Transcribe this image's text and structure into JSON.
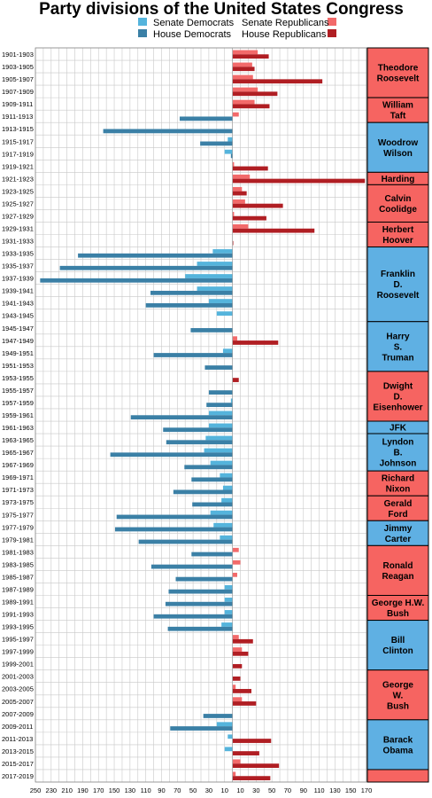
{
  "chart_data": {
    "type": "bar",
    "title": "Party divisions of the United States Congress",
    "legend": [
      {
        "label": "Senate  Democrats",
        "color": "#55b4dc"
      },
      {
        "label": "House Democrats",
        "color": "#3b80a6"
      },
      {
        "label": "Senate Republicans",
        "color": "#f26a6a"
      },
      {
        "label": "House  Republicans",
        "color": "#b01e23"
      }
    ],
    "colors": {
      "senate_dem": "#55b4dc",
      "house_dem": "#3b80a6",
      "senate_rep": "#f26a6a",
      "house_rep": "#b01e23",
      "dem_president": "#5fb0e3",
      "rep_president": "#f66461"
    },
    "x_ticks": [
      "250",
      "230",
      "210",
      "190",
      "170",
      "150",
      "130",
      "110",
      "90",
      "70",
      "50",
      "30",
      "10",
      "10",
      "30",
      "50",
      "70",
      "90",
      "110",
      "130",
      "150",
      "170"
    ],
    "xlim": [
      -250,
      170
    ],
    "grid": true,
    "categories": [
      "1901-1903",
      "1903-1905",
      "1905-1907",
      "1907-1909",
      "1909-1911",
      "1911-1913",
      "1913-1915",
      "1915-1917",
      "1917-1919",
      "1919-1921",
      "1921-1923",
      "1923-1925",
      "1925-1927",
      "1927-1929",
      "1929-1931",
      "1931-1933",
      "1933-1935",
      "1935-1937",
      "1937-1939",
      "1939-1941",
      "1941-1943",
      "1943-1945",
      "1945-1947",
      "1947-1949",
      "1949-1951",
      "1951-1953",
      "1953-1955",
      "1955-1957",
      "1957-1959",
      "1959-1961",
      "1961-1963",
      "1963-1965",
      "1965-1967",
      "1967-1969",
      "1969-1971",
      "1971-1973",
      "1973-1975",
      "1975-1977",
      "1977-1979",
      "1979-1981",
      "1981-1983",
      "1983-1985",
      "1985-1987",
      "1987-1989",
      "1989-1991",
      "1991-1993",
      "1993-1995",
      "1995-1997",
      "1997-1999",
      "1999-2001",
      "2001-2003",
      "2003-2005",
      "2005-2007",
      "2007-2009",
      "2009-2011",
      "2011-2013",
      "2013-2015",
      "2015-2017",
      "2017-2019"
    ],
    "series": [
      {
        "name": "Senate  Democrats",
        "values": [
          0,
          0,
          0,
          0,
          0,
          0,
          0,
          -6,
          -10,
          0,
          0,
          0,
          0,
          0,
          0,
          0,
          -25,
          -45,
          -60,
          -45,
          -30,
          -20,
          0,
          0,
          -12,
          0,
          0,
          0,
          -2,
          -30,
          -30,
          -34,
          -36,
          -28,
          -16,
          -12,
          -14,
          -28,
          -24,
          -16,
          0,
          0,
          0,
          -10,
          -10,
          -10,
          -14,
          0,
          0,
          0,
          0,
          0,
          0,
          0,
          -20,
          -6,
          -10,
          0,
          0
        ]
      },
      {
        "name": "House Democrats",
        "values": [
          0,
          0,
          0,
          0,
          0,
          -67,
          -164,
          -41,
          -2,
          0,
          0,
          0,
          0,
          0,
          0,
          0,
          -196,
          -219,
          -244,
          -104,
          -110,
          0,
          -53,
          0,
          -100,
          -35,
          0,
          -30,
          -33,
          -129,
          -88,
          -84,
          -155,
          -61,
          -52,
          -75,
          -51,
          -147,
          -149,
          -119,
          -52,
          -103,
          -72,
          -81,
          -85,
          -100,
          -82,
          0,
          0,
          0,
          0,
          0,
          0,
          -37,
          -79,
          0,
          0,
          0,
          0
        ]
      },
      {
        "name": "Senate Republicans",
        "values": [
          32,
          25,
          26,
          32,
          28,
          8,
          0,
          0,
          0,
          2,
          22,
          12,
          16,
          2,
          20,
          0,
          0,
          0,
          0,
          0,
          0,
          0,
          0,
          6,
          0,
          0,
          0,
          0,
          0,
          0,
          0,
          0,
          0,
          0,
          0,
          0,
          0,
          0,
          0,
          0,
          8,
          10,
          6,
          0,
          0,
          0,
          0,
          8,
          12,
          0,
          0,
          4,
          12,
          0,
          0,
          0,
          0,
          10,
          4
        ]
      },
      {
        "name": "House  Republicans",
        "values": [
          46,
          28,
          114,
          57,
          47,
          0,
          0,
          0,
          0,
          45,
          168,
          18,
          64,
          43,
          104,
          1,
          0,
          0,
          0,
          0,
          0,
          0,
          0,
          58,
          0,
          0,
          8,
          0,
          0,
          0,
          0,
          0,
          0,
          0,
          0,
          0,
          0,
          0,
          0,
          0,
          0,
          0,
          0,
          0,
          0,
          0,
          0,
          26,
          20,
          12,
          10,
          24,
          30,
          0,
          0,
          49,
          34,
          59,
          48
        ]
      }
    ],
    "presidents": [
      {
        "name": [
          "Theodore",
          "Roosevelt"
        ],
        "party": "R",
        "start": 0,
        "end": 4
      },
      {
        "name": [
          "William",
          "Taft"
        ],
        "party": "R",
        "start": 4,
        "end": 6
      },
      {
        "name": [
          "Woodrow",
          "Wilson"
        ],
        "party": "D",
        "start": 6,
        "end": 10
      },
      {
        "name": [
          "Harding"
        ],
        "party": "R",
        "start": 10,
        "end": 11
      },
      {
        "name": [
          "Calvin",
          "Coolidge"
        ],
        "party": "R",
        "start": 11,
        "end": 14
      },
      {
        "name": [
          "Herbert",
          "Hoover"
        ],
        "party": "R",
        "start": 14,
        "end": 16
      },
      {
        "name": [
          "Franklin",
          "D.",
          "Roosevelt"
        ],
        "party": "D",
        "start": 16,
        "end": 22
      },
      {
        "name": [
          "Harry",
          "S.",
          "Truman"
        ],
        "party": "D",
        "start": 22,
        "end": 26
      },
      {
        "name": [
          "Dwight",
          "D.",
          "Eisenhower"
        ],
        "party": "R",
        "start": 26,
        "end": 30
      },
      {
        "name": [
          "JFK"
        ],
        "party": "D",
        "start": 30,
        "end": 31
      },
      {
        "name": [
          "Lyndon",
          "B.",
          "Johnson"
        ],
        "party": "D",
        "start": 31,
        "end": 34
      },
      {
        "name": [
          "Richard",
          "Nixon"
        ],
        "party": "R",
        "start": 34,
        "end": 36
      },
      {
        "name": [
          "Gerald",
          "Ford"
        ],
        "party": "R",
        "start": 36,
        "end": 38
      },
      {
        "name": [
          "Jimmy",
          "Carter"
        ],
        "party": "D",
        "start": 38,
        "end": 40
      },
      {
        "name": [
          "Ronald",
          "Reagan"
        ],
        "party": "R",
        "start": 40,
        "end": 44
      },
      {
        "name": [
          "George H.W.",
          "Bush"
        ],
        "party": "R",
        "start": 44,
        "end": 46
      },
      {
        "name": [
          "Bill",
          "Clinton"
        ],
        "party": "D",
        "start": 46,
        "end": 50
      },
      {
        "name": [
          "George",
          "W.",
          "Bush"
        ],
        "party": "R",
        "start": 50,
        "end": 54
      },
      {
        "name": [
          "Barack",
          "Obama"
        ],
        "party": "D",
        "start": 54,
        "end": 58
      },
      {
        "name": [],
        "party": "R",
        "start": 58,
        "end": 59
      }
    ]
  }
}
